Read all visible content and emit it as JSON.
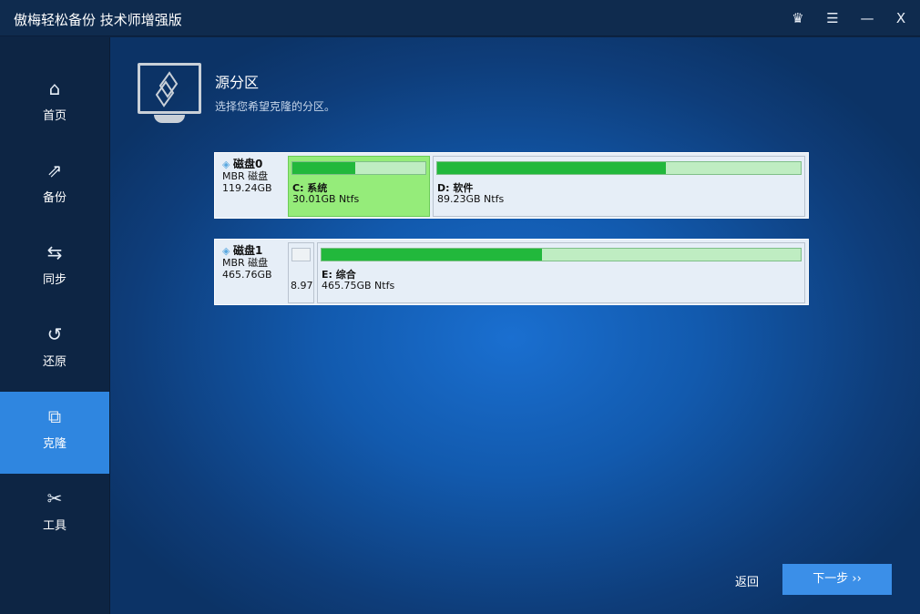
{
  "window": {
    "title": "傲梅轻松备份 技术师增强版",
    "controls": {
      "upgrade": "♛",
      "menu": "☰",
      "minimize": "—",
      "close": "X"
    }
  },
  "sidebar": {
    "items": [
      {
        "label": "首页",
        "icon": "home-icon",
        "glyph": "⌂"
      },
      {
        "label": "备份",
        "icon": "backup-icon",
        "glyph": "⇗"
      },
      {
        "label": "同步",
        "icon": "sync-icon",
        "glyph": "⇆"
      },
      {
        "label": "还原",
        "icon": "restore-icon",
        "glyph": "↺"
      },
      {
        "label": "克隆",
        "icon": "clone-icon",
        "glyph": "⧉",
        "active": true
      },
      {
        "label": "工具",
        "icon": "tools-icon",
        "glyph": "✂"
      }
    ]
  },
  "page": {
    "title": "源分区",
    "subtitle": "选择您希望克隆的分区。"
  },
  "disks": [
    {
      "name": "磁盘0",
      "type": "MBR 磁盘",
      "size": "119.24GB",
      "partitions": [
        {
          "name": "C: 系统",
          "size": "30.01GB Ntfs",
          "used_percent": 47,
          "selected": true
        },
        {
          "name": "D: 软件",
          "size": "89.23GB Ntfs",
          "used_percent": 63
        }
      ]
    },
    {
      "name": "磁盘1",
      "type": "MBR 磁盘",
      "size": "465.76GB",
      "partitions": [
        {
          "name": "",
          "size": "8.97",
          "used_percent": 0
        },
        {
          "name": "E: 综合",
          "size": "465.75GB Ntfs",
          "used_percent": 46
        }
      ]
    }
  ],
  "footer": {
    "back": "返回",
    "next": "下一步 ››"
  },
  "colors": {
    "accent": "#2f86e0",
    "selected_partition": "#95ec7a",
    "used_bar": "#22b83c"
  }
}
